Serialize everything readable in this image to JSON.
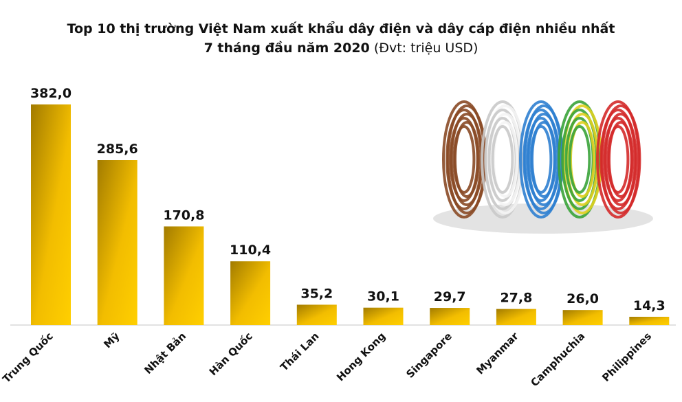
{
  "chart_data": {
    "type": "bar",
    "title": "Top 10 thị trường Việt Nam xuất khẩu dây điện và dây cáp điện nhiều nhất",
    "subtitle": "7 tháng đầu năm 2020",
    "unit": "(Đvt: triệu USD)",
    "categories": [
      "Trung Quốc",
      "Mỹ",
      "Nhật Bản",
      "Hàn Quốc",
      "Thái Lan",
      "Hong Kong",
      "Singapore",
      "Myanmar",
      "Camphuchia",
      "Philippines"
    ],
    "values": [
      382.0,
      285.6,
      170.8,
      110.4,
      35.2,
      30.1,
      29.7,
      27.8,
      26.0,
      14.3
    ],
    "value_labels": [
      "382,0",
      "285,6",
      "170,8",
      "110,4",
      "35,2",
      "30,1",
      "29,7",
      "27,8",
      "26,0",
      "14,3"
    ],
    "ylim": [
      0,
      382
    ],
    "grid": false,
    "legend": "none",
    "bar_color": "#f2bd00",
    "bar_color_dark": "#a27b00"
  },
  "decoration": {
    "wire_colors": [
      "#8a4a26",
      "#e8e8e8",
      "#2f7fd0",
      "#3aa33a",
      "#d42a2a"
    ]
  }
}
